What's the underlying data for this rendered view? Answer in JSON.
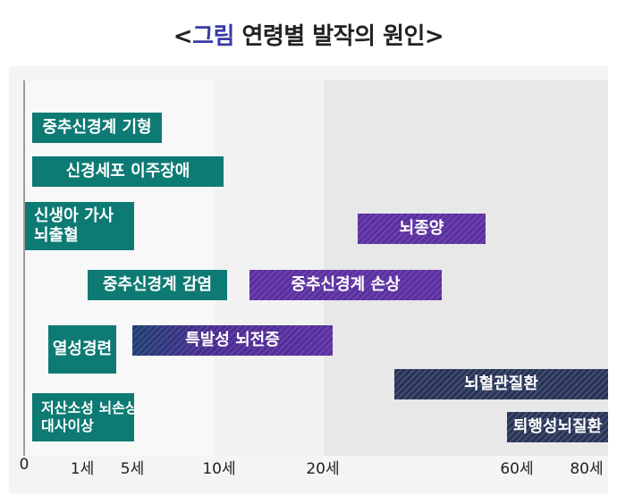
{
  "title": {
    "open": "<",
    "accent": "그림",
    "rest": " 연령별 발작의 원인>"
  },
  "axis": {
    "ticks": [
      "0",
      "1세",
      "5세",
      "10세",
      "20세",
      "60세",
      "80세"
    ]
  },
  "causes": {
    "cns_malformation": "중추신경계 기형",
    "neuronal_migration": "신경세포 이주장애",
    "neonatal_asphyxia_line1": "신생아 가사",
    "neonatal_asphyxia_line2": "뇌출혈",
    "cns_infection": "중추신경계 감염",
    "febrile_seizure": "열성경련",
    "metabolic_line1": "저산소성 뇌손상",
    "metabolic_line2": "대사이상",
    "brain_tumor": "뇌종양",
    "cns_injury": "중추신경계 손상",
    "idiopathic_epilepsy": "특발성 뇌전증",
    "cerebrovascular": "뇌혈관질환",
    "degenerative": "퇴행성뇌질환"
  },
  "colors": {
    "teal": "#0e7a74",
    "purple": "#5a2fa0",
    "navy": "#263256",
    "title_accent": "#3a3aa8"
  }
}
